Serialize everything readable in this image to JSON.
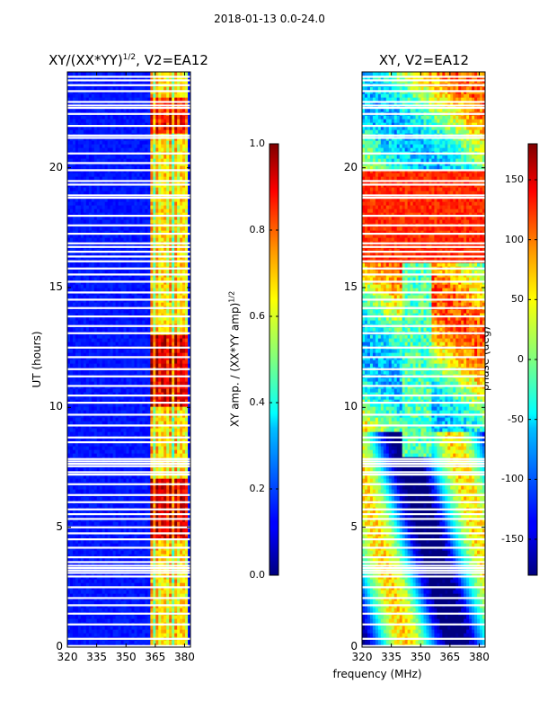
{
  "suptitle": "2018-01-13 0.0-24.0",
  "chart_data": [
    {
      "type": "heatmap",
      "title": "XY/(XX*YY)^(1/2), V2=EA12",
      "title_main": "XY/(XX*YY)",
      "title_sup": "1/2",
      "title_rest": ", V2=EA12",
      "xlabel": "",
      "ylabel": "UT (hours)",
      "xlim": [
        320,
        383
      ],
      "ylim": [
        0,
        24
      ],
      "xticks": [
        "320",
        "335",
        "350",
        "365",
        "380"
      ],
      "yticks": [
        "0",
        "5",
        "10",
        "15",
        "20"
      ],
      "colorbar": {
        "label": "XY amp. / (XX*YY amp)^(1/2)",
        "label_main": "XY amp. / (XX*YY amp)",
        "label_sup": "1/2",
        "range": [
          0.0,
          1.0
        ],
        "ticks": [
          "0.0",
          "0.2",
          "0.4",
          "0.6",
          "0.8",
          "1.0"
        ]
      },
      "blank_rows_hours": [
        0.05,
        0.35,
        0.95,
        1.4,
        1.75,
        2.05,
        2.5,
        2.95,
        3.1,
        3.2,
        3.3,
        3.4,
        3.55,
        3.75,
        4.15,
        4.5,
        4.75,
        5.0,
        5.35,
        5.55,
        5.75,
        6.05,
        6.35,
        6.8,
        7.2,
        7.3,
        7.55,
        7.65,
        7.75,
        7.85,
        8.55,
        8.75,
        9.25,
        9.7,
        10.2,
        10.5,
        10.9,
        11.3,
        11.6,
        12.1,
        12.5,
        13.1,
        13.4,
        13.8,
        14.15,
        14.5,
        14.8,
        15.25,
        15.55,
        15.8,
        16.1,
        16.3,
        16.5,
        16.7,
        16.85,
        17.25,
        17.6,
        18.0,
        18.75,
        18.85,
        19.3,
        19.45,
        19.9,
        20.2,
        20.6,
        21.25,
        21.35,
        21.75,
        22.25,
        22.5,
        22.6,
        22.75,
        23.2,
        23.45,
        23.65,
        23.8
      ]
    },
    {
      "type": "heatmap",
      "title": "XY, V2=EA12",
      "xlabel": "frequency (MHz)",
      "ylabel": "",
      "xlim": [
        320,
        383
      ],
      "ylim": [
        0,
        24
      ],
      "xticks": [
        "320",
        "335",
        "350",
        "365",
        "380"
      ],
      "yticks": [
        "0",
        "5",
        "10",
        "15",
        "20"
      ],
      "colorbar": {
        "label": "phase (deg)",
        "range": [
          -180,
          180
        ],
        "ticks": [
          "-150",
          "-100",
          "-50",
          "0",
          "50",
          "100",
          "150"
        ]
      },
      "blank_rows_hours": [
        0.05,
        0.35,
        0.95,
        1.4,
        1.75,
        2.05,
        2.5,
        2.95,
        3.1,
        3.2,
        3.3,
        3.4,
        3.55,
        3.75,
        4.15,
        4.5,
        4.75,
        5.0,
        5.35,
        5.55,
        5.75,
        6.05,
        6.35,
        6.8,
        7.2,
        7.3,
        7.55,
        7.65,
        7.75,
        7.85,
        8.55,
        8.75,
        9.25,
        9.7,
        10.2,
        10.5,
        10.9,
        11.3,
        11.6,
        12.1,
        12.5,
        13.1,
        13.4,
        13.8,
        14.15,
        14.5,
        14.8,
        15.25,
        15.55,
        15.8,
        16.1,
        16.3,
        16.5,
        16.7,
        16.85,
        17.25,
        17.6,
        18.0,
        18.75,
        18.85,
        19.3,
        19.45,
        19.9,
        20.2,
        20.6,
        21.25,
        21.35,
        21.75,
        22.25,
        22.5,
        22.6,
        22.75,
        23.2,
        23.45,
        23.65,
        23.8
      ]
    }
  ]
}
